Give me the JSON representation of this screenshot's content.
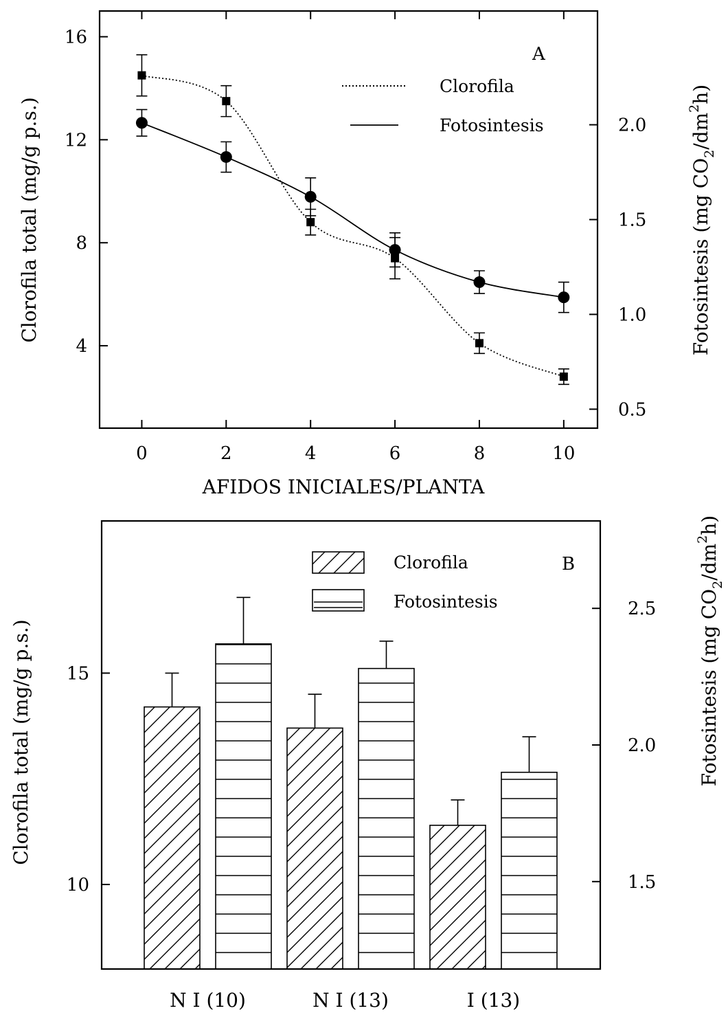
{
  "chart_data": [
    {
      "panel": "A",
      "type": "line",
      "xlabel": "AFIDOS INICIALES/PLANTA",
      "ylabel_left": "Clorofila total (mg/g p.s.)",
      "ylabel_right_parts": [
        "Fotosintesis (mg CO",
        "2",
        "/dm",
        "2",
        "h)"
      ],
      "x": [
        0,
        2,
        4,
        6,
        8,
        10
      ],
      "x_ticks": [
        "0",
        "2",
        "4",
        "6",
        "8",
        "10"
      ],
      "xlim": [
        -1,
        10.8
      ],
      "left_ylim": [
        0.8,
        17
      ],
      "left_ticks": [
        "4",
        "8",
        "12",
        "16"
      ],
      "right_ylim": [
        0.4,
        2.6
      ],
      "right_ticks": [
        "0.5",
        "1.0",
        "1.5",
        "2.0"
      ],
      "series": [
        {
          "name": "Clorofila",
          "axis": "left",
          "style": "dotted",
          "marker": "square",
          "values": [
            14.5,
            13.5,
            8.8,
            7.4,
            4.1,
            2.8
          ],
          "errors": [
            0.8,
            0.6,
            0.5,
            0.8,
            0.4,
            0.3
          ]
        },
        {
          "name": "Fotosintesis",
          "axis": "right",
          "style": "solid",
          "marker": "circle",
          "values": [
            2.01,
            1.83,
            1.62,
            1.34,
            1.17,
            1.09
          ],
          "errors": [
            0.07,
            0.08,
            0.1,
            0.09,
            0.06,
            0.08
          ]
        }
      ]
    },
    {
      "panel": "B",
      "type": "bar",
      "ylabel_left": "Clorofila total (mg/g p.s.)",
      "ylabel_right_parts": [
        "Fotosintesis (mg CO",
        "2",
        "/dm",
        "2",
        "h)"
      ],
      "categories": [
        "N I (10)",
        "N I (13)",
        "I (13)"
      ],
      "left_ylim": [
        8.0,
        18.6
      ],
      "left_ticks": [
        "10",
        "15"
      ],
      "right_ylim": [
        1.18,
        2.82
      ],
      "right_ticks": [
        "1.5",
        "2.0",
        "2.5"
      ],
      "series": [
        {
          "name": "Clorofila",
          "axis": "left",
          "pattern": "diagonal-hatch",
          "values": [
            14.2,
            13.7,
            11.4
          ],
          "errors": [
            0.8,
            0.8,
            0.6
          ]
        },
        {
          "name": "Fotosintesis",
          "axis": "right",
          "pattern": "horizontal-lines",
          "values": [
            2.37,
            2.28,
            1.9
          ],
          "errors": [
            0.17,
            0.1,
            0.13
          ]
        }
      ]
    }
  ]
}
